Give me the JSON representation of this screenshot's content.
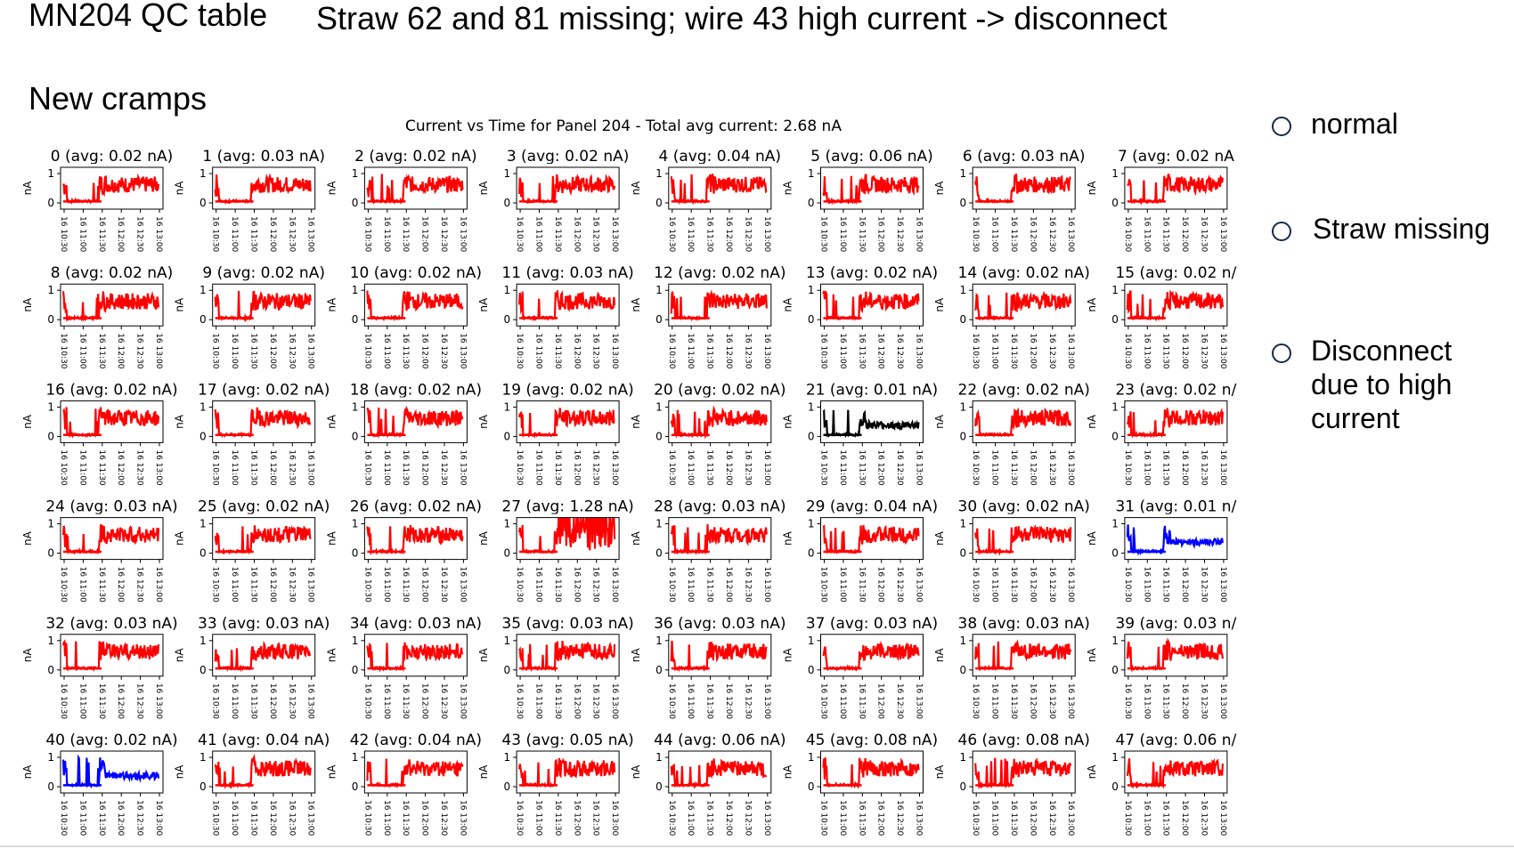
{
  "slide": {
    "title": "MN204 QC table",
    "note": "Straw 62 and 81 missing; wire 43 high current -> disconnect",
    "subtitle": "New cramps"
  },
  "legend": [
    {
      "label": "normal",
      "color": "#e81818"
    },
    {
      "label": "Straw missing",
      "color": "#1a4fe0"
    },
    {
      "label": "Disconnect due to high current",
      "color": "#000000"
    }
  ],
  "chart_data": {
    "type": "line",
    "title": "Current vs Time for Panel 204 - Total avg current: 2.68 nA",
    "ylabel": "nA",
    "ylim": [
      0,
      1
    ],
    "yticks": [
      "0",
      "1"
    ],
    "xticks": [
      "16 10:30",
      "16 11:00",
      "16 11:30",
      "16 12:00",
      "16 12:30",
      "16 13:00"
    ],
    "series_colors": {
      "normal": "#ff0000",
      "missing": "#0000ff",
      "disconnect": "#000000"
    },
    "panels": [
      {
        "title": "0 (avg: 0.02 nA)",
        "status": "normal"
      },
      {
        "title": "1 (avg: 0.03 nA)",
        "status": "normal"
      },
      {
        "title": "2 (avg: 0.02 nA)",
        "status": "normal"
      },
      {
        "title": "3 (avg: 0.02 nA)",
        "status": "normal"
      },
      {
        "title": "4 (avg: 0.04 nA)",
        "status": "normal"
      },
      {
        "title": "5 (avg: 0.06 nA)",
        "status": "normal"
      },
      {
        "title": "6 (avg: 0.03 nA)",
        "status": "normal"
      },
      {
        "title": "7 (avg: 0.02 nA",
        "status": "normal"
      },
      {
        "title": "8 (avg: 0.02 nA)",
        "status": "normal"
      },
      {
        "title": "9 (avg: 0.02 nA)",
        "status": "normal"
      },
      {
        "title": "10 (avg: 0.02 nA)",
        "status": "normal"
      },
      {
        "title": "11 (avg: 0.03 nA)",
        "status": "normal"
      },
      {
        "title": "12 (avg: 0.02 nA)",
        "status": "normal"
      },
      {
        "title": "13 (avg: 0.02 nA)",
        "status": "normal"
      },
      {
        "title": "14 (avg: 0.02 nA)",
        "status": "normal"
      },
      {
        "title": "15 (avg: 0.02 n/",
        "status": "normal"
      },
      {
        "title": "16 (avg: 0.02 nA)",
        "status": "normal"
      },
      {
        "title": "17 (avg: 0.02 nA)",
        "status": "normal"
      },
      {
        "title": "18 (avg: 0.02 nA)",
        "status": "normal"
      },
      {
        "title": "19 (avg: 0.02 nA)",
        "status": "normal"
      },
      {
        "title": "20 (avg: 0.02 nA)",
        "status": "normal"
      },
      {
        "title": "21 (avg: 0.01 nA)",
        "status": "disconnect"
      },
      {
        "title": "22 (avg: 0.02 nA)",
        "status": "normal"
      },
      {
        "title": "23 (avg: 0.02 n/",
        "status": "normal"
      },
      {
        "title": "24 (avg: 0.03 nA)",
        "status": "normal"
      },
      {
        "title": "25 (avg: 0.02 nA)",
        "status": "normal"
      },
      {
        "title": "26 (avg: 0.02 nA)",
        "status": "normal"
      },
      {
        "title": "27 (avg: 1.28 nA)",
        "status": "normal"
      },
      {
        "title": "28 (avg: 0.03 nA)",
        "status": "normal"
      },
      {
        "title": "29 (avg: 0.04 nA)",
        "status": "normal"
      },
      {
        "title": "30 (avg: 0.02 nA)",
        "status": "normal"
      },
      {
        "title": "31 (avg: 0.01 n/",
        "status": "missing"
      },
      {
        "title": "32 (avg: 0.03 nA)",
        "status": "normal"
      },
      {
        "title": "33 (avg: 0.03 nA)",
        "status": "normal"
      },
      {
        "title": "34 (avg: 0.03 nA)",
        "status": "normal"
      },
      {
        "title": "35 (avg: 0.03 nA)",
        "status": "normal"
      },
      {
        "title": "36 (avg: 0.03 nA)",
        "status": "normal"
      },
      {
        "title": "37 (avg: 0.03 nA)",
        "status": "normal"
      },
      {
        "title": "38 (avg: 0.03 nA)",
        "status": "normal"
      },
      {
        "title": "39 (avg: 0.03 n/",
        "status": "normal"
      },
      {
        "title": "40 (avg: 0.02 nA)",
        "status": "missing"
      },
      {
        "title": "41 (avg: 0.04 nA)",
        "status": "normal"
      },
      {
        "title": "42 (avg: 0.04 nA)",
        "status": "normal"
      },
      {
        "title": "43 (avg: 0.05 nA)",
        "status": "normal"
      },
      {
        "title": "44 (avg: 0.06 nA)",
        "status": "normal"
      },
      {
        "title": "45 (avg: 0.08 nA)",
        "status": "normal"
      },
      {
        "title": "46 (avg: 0.08 nA)",
        "status": "normal"
      },
      {
        "title": "47 (avg: 0.06 n/",
        "status": "normal"
      }
    ]
  }
}
